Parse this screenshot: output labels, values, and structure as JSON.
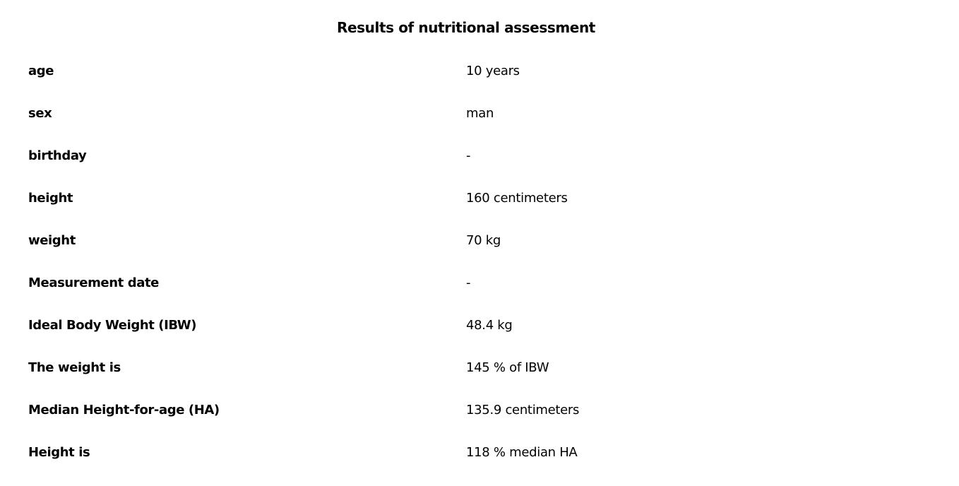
{
  "page": {
    "title": "Results of nutritional assessment"
  },
  "results": [
    {
      "label": "age",
      "value": "10 years"
    },
    {
      "label": "sex",
      "value": "man"
    },
    {
      "label": "birthday",
      "value": "-"
    },
    {
      "label": "height",
      "value": "160 centimeters"
    },
    {
      "label": "weight",
      "value": "70 kg"
    },
    {
      "label": "Measurement date",
      "value": "-"
    },
    {
      "label": "Ideal Body Weight (IBW)",
      "value": "48.4 kg"
    },
    {
      "label": "The weight is",
      "value": "145 % of IBW"
    },
    {
      "label": "Median Height-for-age (HA)",
      "value": "135.9 centimeters"
    },
    {
      "label": "Height is",
      "value": "118 % median HA"
    }
  ]
}
